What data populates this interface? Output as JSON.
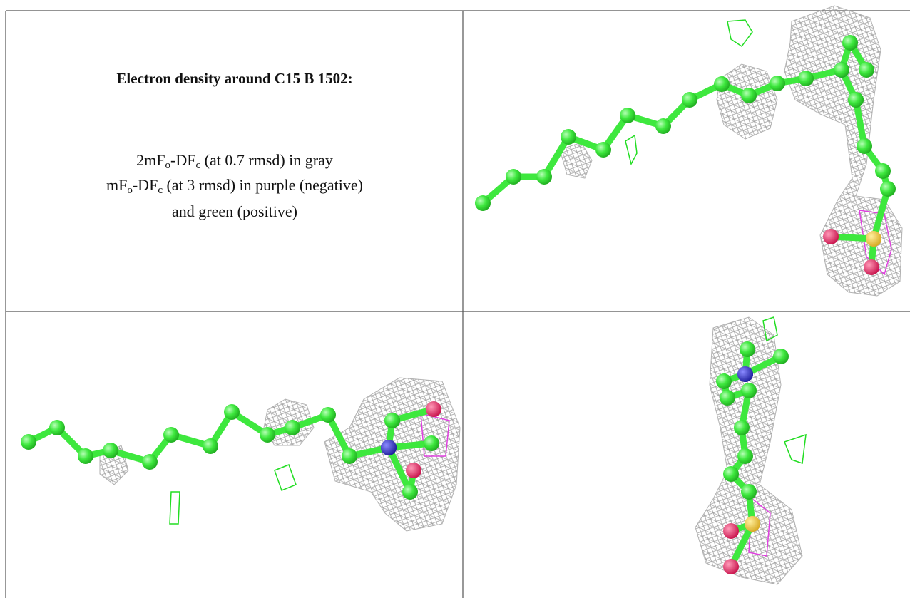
{
  "left_panel": {
    "title": "Electron density around C15 B 1502:",
    "lines": [
      [
        "2mF",
        "o",
        "-DF",
        "c",
        " (at 0.7 rmsd) in gray"
      ],
      [
        "mF",
        "o",
        "-DF",
        "c",
        " (at 3 rmsd) in purple (negative)"
      ],
      [
        "and green (positive)"
      ]
    ]
  }
}
